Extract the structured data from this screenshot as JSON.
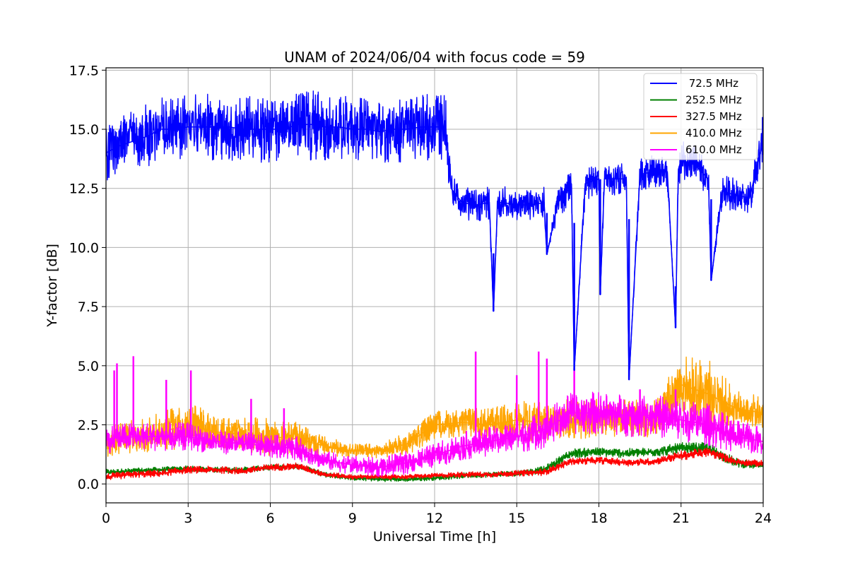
{
  "chart_data": {
    "type": "line",
    "title": "UNAM of 2024/06/04 with focus code = 59",
    "xlabel": "Universal Time [h]",
    "ylabel": "Y-factor [dB]",
    "xlim": [
      0,
      24
    ],
    "ylim": [
      -0.8,
      17.6
    ],
    "xticks": [
      0,
      3,
      6,
      9,
      12,
      15,
      18,
      21,
      24
    ],
    "xtick_labels": [
      "0",
      "3",
      "6",
      "9",
      "12",
      "15",
      "18",
      "21",
      "24"
    ],
    "yticks": [
      0.0,
      2.5,
      5.0,
      7.5,
      10.0,
      12.5,
      15.0,
      17.5
    ],
    "ytick_labels": [
      "0.0",
      "2.5",
      "5.0",
      "7.5",
      "10.0",
      "12.5",
      "15.0",
      "17.5"
    ],
    "grid": true,
    "legend_position": "top-right",
    "series": [
      {
        "name": " 72.5 MHz",
        "color": "#0000ff",
        "x": [
          0,
          0.5,
          1,
          1.5,
          2,
          2.5,
          3,
          3.5,
          4,
          4.5,
          5,
          5.5,
          6,
          6.5,
          7,
          7.5,
          8,
          8.5,
          9,
          9.5,
          10,
          10.5,
          11,
          11.5,
          12,
          12.4,
          12.6,
          13,
          13.5,
          14,
          14.15,
          14.3,
          14.5,
          15,
          15.5,
          16,
          16.1,
          16.5,
          17,
          17.1,
          17.5,
          18,
          18.05,
          18.2,
          18.5,
          19,
          19.1,
          19.5,
          20,
          20.5,
          20.8,
          20.9,
          21,
          21.5,
          22,
          22.1,
          22.5,
          23,
          23.5,
          24
        ],
        "y": [
          14,
          14.3,
          14.5,
          14.7,
          15,
          15,
          15.1,
          15.1,
          15.1,
          15.1,
          15,
          15,
          15,
          15,
          15.2,
          15.2,
          15.1,
          15.1,
          15,
          15,
          14.9,
          15,
          15,
          15.1,
          15.1,
          15.1,
          12.5,
          11.9,
          11.8,
          11.9,
          7.3,
          11.9,
          11.9,
          11.8,
          11.8,
          11.9,
          9.7,
          11.9,
          12.6,
          4.8,
          12.7,
          12.9,
          8,
          12.9,
          12.9,
          12.9,
          4.4,
          13.1,
          13.2,
          13.2,
          6.6,
          13.3,
          13.7,
          13.5,
          12.9,
          8.6,
          12.4,
          12.2,
          12.1,
          14.5
        ],
        "band": [
          1.4,
          1.4,
          1.4,
          1.4,
          1.4,
          1.4,
          1.4,
          1.4,
          1.4,
          1.4,
          1.4,
          1.4,
          1.4,
          1.4,
          1.5,
          1.5,
          1.4,
          1.4,
          1.4,
          1.4,
          1.4,
          1.4,
          1.4,
          1.4,
          1.4,
          1.4,
          0.6,
          0.7,
          0.7,
          0.7,
          0,
          0.7,
          0.7,
          0.7,
          0.7,
          0.7,
          0,
          0.7,
          0.7,
          0,
          0.7,
          0.7,
          0,
          0.7,
          0.7,
          0.7,
          0,
          0.7,
          0.7,
          0.7,
          0,
          0.7,
          0.9,
          0.8,
          0.7,
          0,
          0.7,
          0.7,
          0.7,
          1.3
        ]
      },
      {
        "name": "252.5 MHz",
        "color": "#008000",
        "x": [
          0,
          1,
          2,
          3,
          4,
          5,
          6,
          7,
          8,
          9,
          10,
          11,
          12,
          13,
          14,
          15,
          16,
          17,
          18,
          19,
          20,
          21,
          22,
          23,
          24
        ],
        "y": [
          0.5,
          0.55,
          0.6,
          0.65,
          0.6,
          0.6,
          0.7,
          0.75,
          0.4,
          0.25,
          0.2,
          0.2,
          0.25,
          0.35,
          0.4,
          0.45,
          0.6,
          1.3,
          1.35,
          1.3,
          1.35,
          1.5,
          1.5,
          0.9,
          0.75
        ],
        "band": [
          0.12,
          0.12,
          0.12,
          0.12,
          0.12,
          0.12,
          0.12,
          0.12,
          0.12,
          0.1,
          0.1,
          0.1,
          0.1,
          0.12,
          0.12,
          0.12,
          0.15,
          0.2,
          0.2,
          0.2,
          0.2,
          0.25,
          0.25,
          0.2,
          0.15
        ]
      },
      {
        "name": "327.5 MHz",
        "color": "#ff0000",
        "x": [
          0,
          1,
          2,
          3,
          4,
          5,
          6,
          7,
          8,
          9,
          10,
          11,
          12,
          13,
          14,
          15,
          16,
          17,
          18,
          19,
          20,
          21,
          22,
          23,
          24
        ],
        "y": [
          0.3,
          0.4,
          0.45,
          0.6,
          0.6,
          0.55,
          0.7,
          0.75,
          0.4,
          0.3,
          0.3,
          0.3,
          0.35,
          0.4,
          0.4,
          0.45,
          0.5,
          0.95,
          1.0,
          0.9,
          0.95,
          1.2,
          1.35,
          0.95,
          0.85
        ],
        "band": [
          0.15,
          0.15,
          0.15,
          0.15,
          0.15,
          0.15,
          0.15,
          0.15,
          0.12,
          0.1,
          0.1,
          0.1,
          0.1,
          0.12,
          0.12,
          0.12,
          0.15,
          0.15,
          0.15,
          0.15,
          0.15,
          0.2,
          0.2,
          0.15,
          0.15
        ]
      },
      {
        "name": "410.0 MHz",
        "color": "#ffa500",
        "x": [
          0,
          1,
          2,
          3,
          4,
          5,
          6,
          7,
          8,
          9,
          10,
          11,
          12,
          13,
          14,
          15,
          16,
          17,
          18,
          19,
          20,
          21,
          22,
          23,
          24
        ],
        "y": [
          1.8,
          2.0,
          2.2,
          2.5,
          2.2,
          2.1,
          2.0,
          1.9,
          1.6,
          1.4,
          1.4,
          1.7,
          2.5,
          2.6,
          2.5,
          2.7,
          2.6,
          2.7,
          2.8,
          2.8,
          2.7,
          4.2,
          3.8,
          3.2,
          3.0
        ],
        "band": [
          0.7,
          0.7,
          0.8,
          1.0,
          0.7,
          0.7,
          0.8,
          0.7,
          0.4,
          0.3,
          0.3,
          0.5,
          0.6,
          0.6,
          0.7,
          0.8,
          0.9,
          0.9,
          0.8,
          0.8,
          0.8,
          1.3,
          1.5,
          0.8,
          0.7
        ]
      },
      {
        "name": "610.0 MHz",
        "color": "#ff00ff",
        "x": [
          0,
          1,
          2,
          3,
          4,
          5,
          6,
          7,
          8,
          9,
          10,
          11,
          12,
          13,
          14,
          15,
          16,
          17,
          18,
          19,
          20,
          21,
          22,
          23,
          24
        ],
        "y": [
          1.9,
          2.0,
          2.0,
          2.0,
          1.8,
          1.7,
          1.6,
          1.5,
          1.0,
          0.8,
          0.7,
          0.9,
          1.2,
          1.6,
          1.8,
          2.0,
          2.3,
          3.0,
          3.0,
          2.9,
          2.9,
          2.7,
          2.5,
          2.0,
          1.8
        ],
        "band": [
          0.6,
          0.6,
          0.6,
          0.6,
          0.5,
          0.5,
          0.5,
          0.5,
          0.4,
          0.4,
          0.4,
          0.5,
          0.5,
          0.6,
          0.6,
          0.7,
          0.8,
          0.9,
          0.9,
          0.9,
          0.9,
          0.9,
          0.9,
          0.7,
          0.6
        ],
        "spikes": [
          [
            0.3,
            4.8
          ],
          [
            0.4,
            5.1
          ],
          [
            1.0,
            5.4
          ],
          [
            2.2,
            4.4
          ],
          [
            3.1,
            4.8
          ],
          [
            5.3,
            3.6
          ],
          [
            6.5,
            3.2
          ],
          [
            13.5,
            5.6
          ],
          [
            15.0,
            4.6
          ],
          [
            15.8,
            5.6
          ],
          [
            16.1,
            5.3
          ],
          [
            17.1,
            4.9
          ],
          [
            19.5,
            4.0
          ],
          [
            20.8,
            4.0
          ]
        ]
      }
    ]
  }
}
